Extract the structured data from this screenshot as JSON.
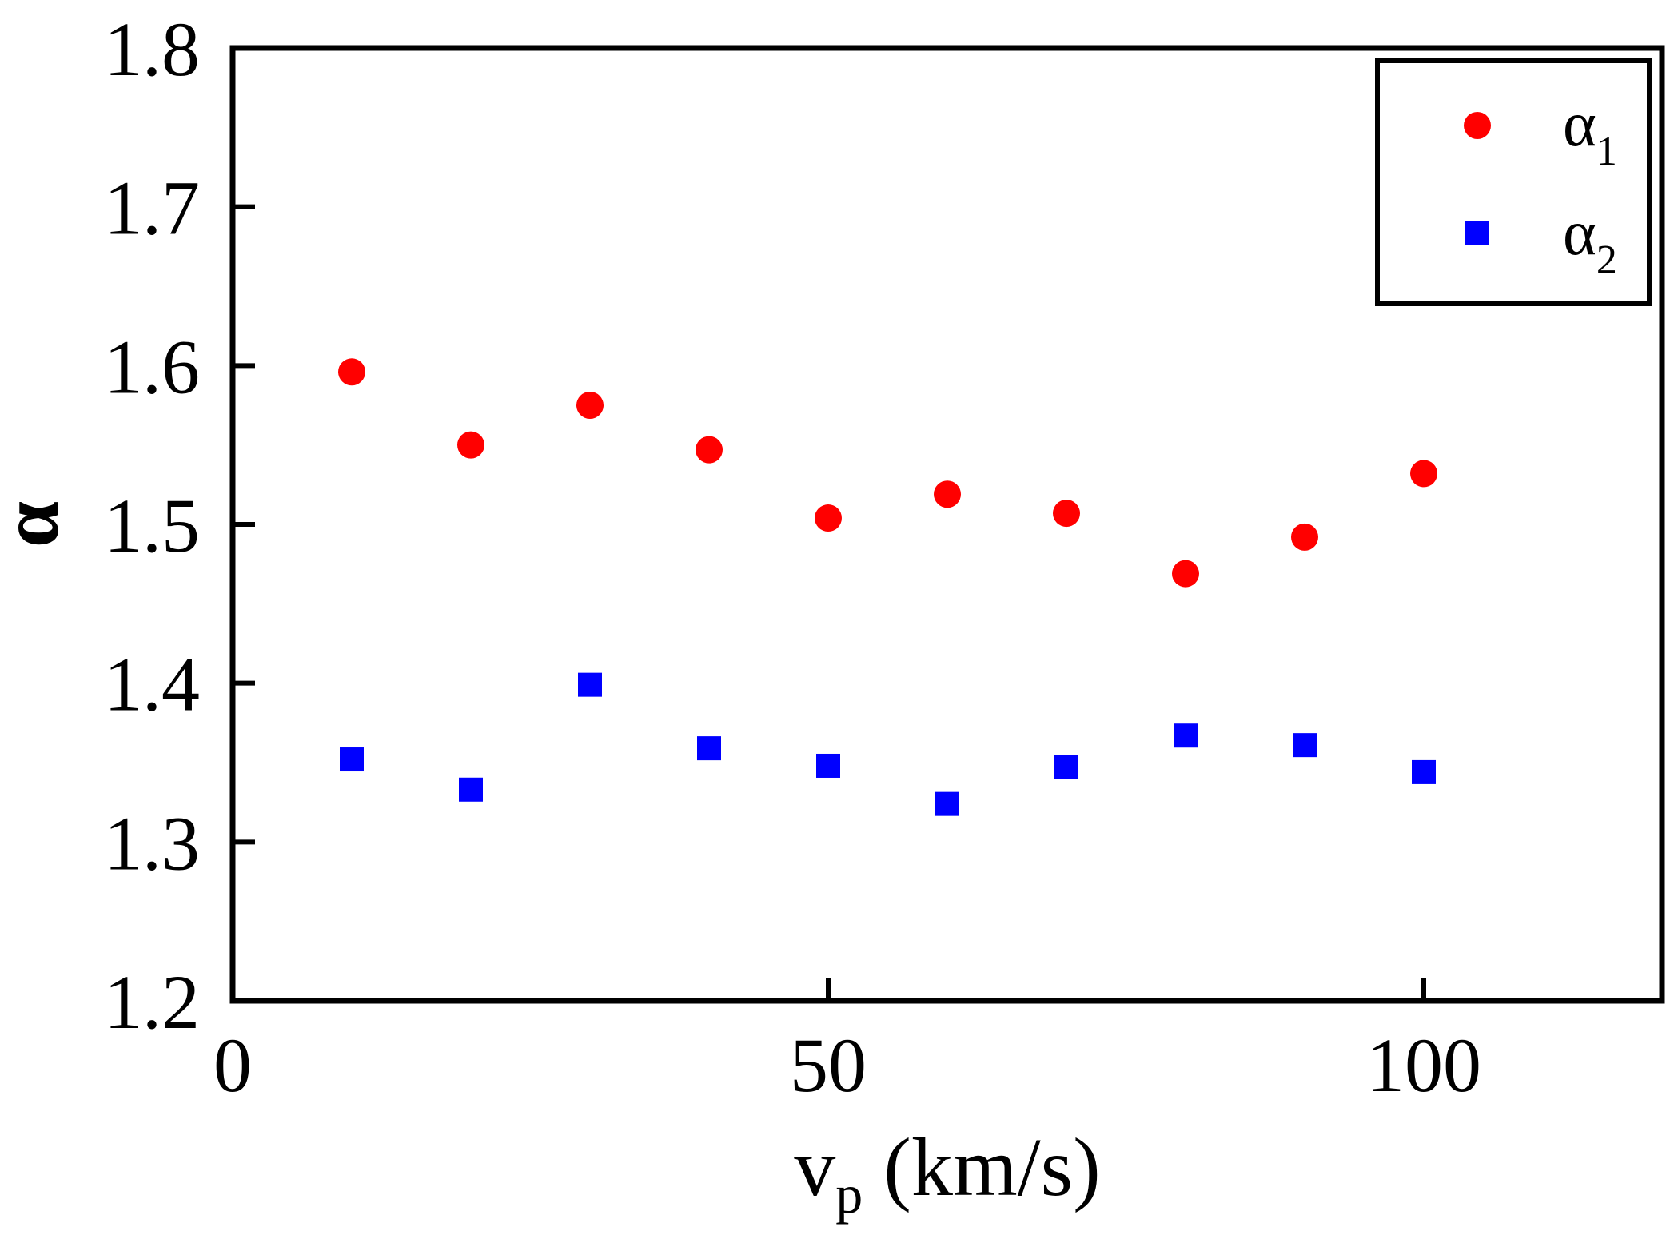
{
  "chart_data": {
    "type": "scatter",
    "title": "",
    "xlabel": {
      "main": "v",
      "sub": "p",
      "rest": " (km/s)"
    },
    "ylabel": "α",
    "xlim": [
      0,
      120
    ],
    "ylim": [
      1.2,
      1.8
    ],
    "x_ticks": [
      0,
      50,
      100
    ],
    "x_tick_labels": [
      "0",
      "50",
      "100"
    ],
    "y_ticks": [
      1.2,
      1.3,
      1.4,
      1.5,
      1.6,
      1.7,
      1.8
    ],
    "y_tick_labels": [
      "1.2",
      "1.3",
      "1.4",
      "1.5",
      "1.6",
      "1.7",
      "1.8"
    ],
    "grid": false,
    "legend_position": "top-right",
    "series": [
      {
        "name": "α1",
        "legend_main": "α",
        "legend_sub": "1",
        "marker": "circle",
        "color": "#ff0000",
        "x": [
          10,
          20,
          30,
          40,
          50,
          60,
          70,
          80,
          90,
          100
        ],
        "y": [
          1.596,
          1.55,
          1.575,
          1.547,
          1.504,
          1.519,
          1.507,
          1.469,
          1.492,
          1.532
        ]
      },
      {
        "name": "α2",
        "legend_main": "α",
        "legend_sub": "2",
        "marker": "square",
        "color": "#0000ff",
        "x": [
          10,
          20,
          30,
          40,
          50,
          60,
          70,
          80,
          90,
          100
        ],
        "y": [
          1.352,
          1.333,
          1.399,
          1.359,
          1.348,
          1.324,
          1.347,
          1.367,
          1.361,
          1.344
        ]
      }
    ]
  }
}
